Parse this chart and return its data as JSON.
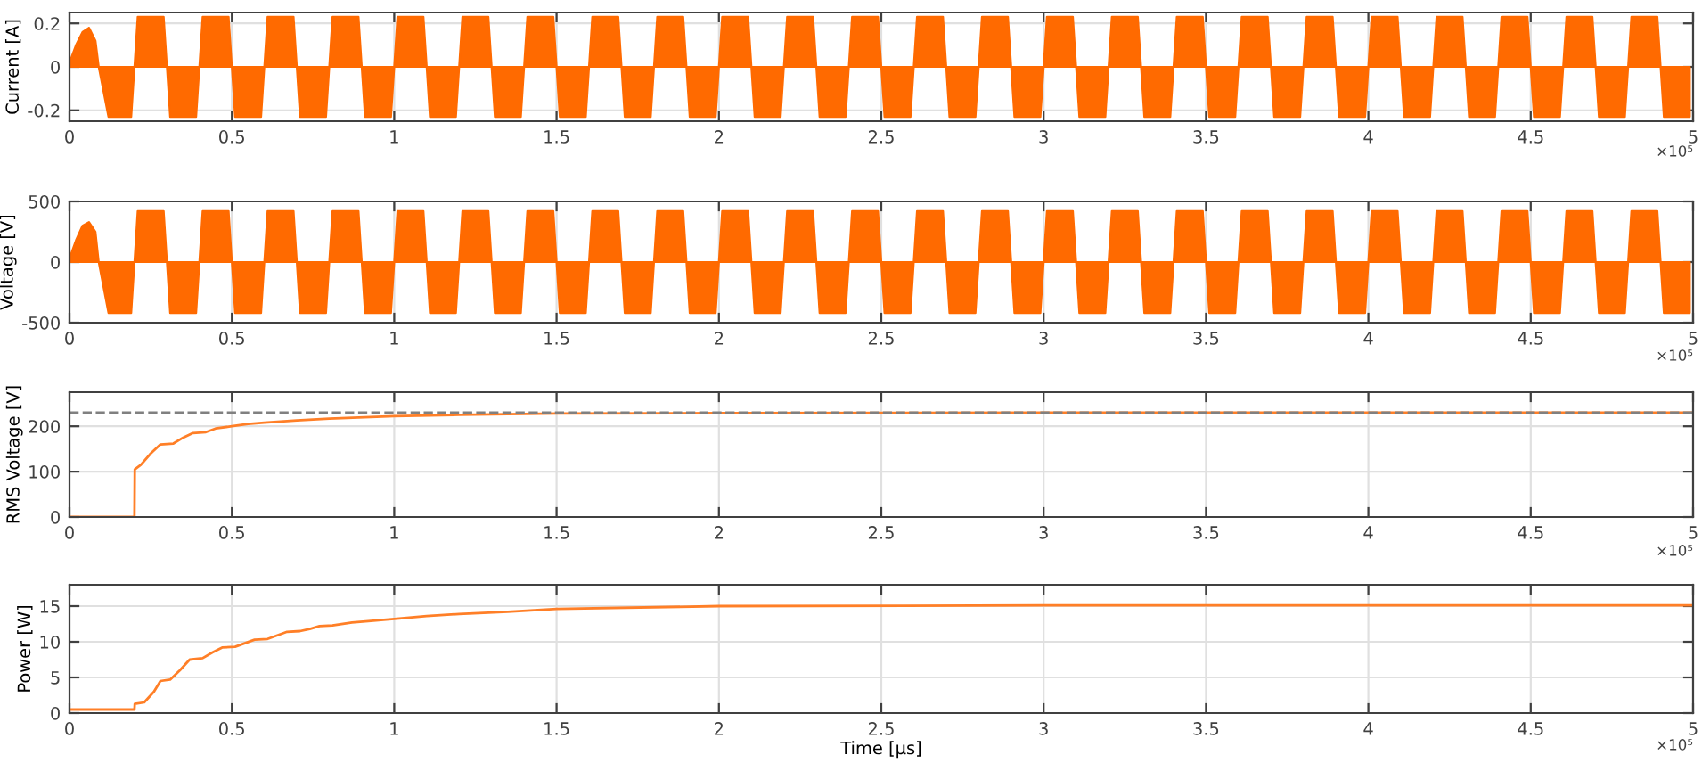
{
  "chart_data": [
    {
      "type": "area",
      "ylabel": "Current [A]",
      "xlim": [
        0,
        5
      ],
      "ylim": [
        -0.25,
        0.25
      ],
      "yticks": [
        -0.2,
        0,
        0.2
      ],
      "xticks": [
        0,
        0.5,
        1,
        1.5,
        2,
        2.5,
        3,
        3.5,
        4,
        4.5,
        5
      ],
      "grid": true,
      "annotations": [
        "×10⁵"
      ],
      "series": [
        {
          "color": "#ff6a00",
          "x": [
            0,
            0.02,
            0.04,
            0.06,
            0.08,
            0.09,
            0.12,
            0.19,
            0.21,
            0.29,
            0.31,
            0.39,
            0.41,
            0.49,
            0.51,
            0.59,
            0.61,
            0.69,
            0.71,
            0.79,
            0.81,
            0.89,
            0.91,
            0.99,
            1.01,
            1.09,
            1.11,
            1.19,
            1.21,
            1.29,
            1.31,
            1.39,
            1.41,
            1.49,
            1.51,
            1.59,
            1.61,
            1.69,
            1.71,
            1.79,
            1.81,
            1.89,
            1.91,
            1.99,
            2.01,
            2.09,
            2.11,
            2.19,
            2.21,
            2.29,
            2.31,
            2.39,
            2.41,
            2.49,
            2.51,
            2.59,
            2.61,
            2.69,
            2.71,
            2.79,
            2.81,
            2.89,
            2.91,
            2.99,
            3.01,
            3.09,
            3.11,
            3.19,
            3.21,
            3.29,
            3.31,
            3.39,
            3.41,
            3.49,
            3.51,
            3.59,
            3.61,
            3.69,
            3.71,
            3.79,
            3.81,
            3.89,
            3.91,
            3.99,
            4.01,
            4.09,
            4.11,
            4.19,
            4.21,
            4.29,
            4.31,
            4.39,
            4.41,
            4.49,
            4.51,
            4.59,
            4.61,
            4.69,
            4.71,
            4.79,
            4.81,
            4.89,
            4.91,
            4.99
          ],
          "values": [
            0.02,
            0.1,
            0.16,
            0.18,
            0.12,
            0,
            -0.23,
            -0.23,
            0.23,
            0.23,
            -0.23,
            -0.23,
            0.23,
            0.23,
            -0.23,
            -0.23,
            0.23,
            0.23,
            -0.23,
            -0.23,
            0.23,
            0.23,
            -0.23,
            -0.23,
            0.23,
            0.23,
            -0.23,
            -0.23,
            0.23,
            0.23,
            -0.23,
            -0.23,
            0.23,
            0.23,
            -0.23,
            -0.23,
            0.23,
            0.23,
            -0.23,
            -0.23,
            0.23,
            0.23,
            -0.23,
            -0.23,
            0.23,
            0.23,
            -0.23,
            -0.23,
            0.23,
            0.23,
            -0.23,
            -0.23,
            0.23,
            0.23,
            -0.23,
            -0.23,
            0.23,
            0.23,
            -0.23,
            -0.23,
            0.23,
            0.23,
            -0.23,
            -0.23,
            0.23,
            0.23,
            -0.23,
            -0.23,
            0.23,
            0.23,
            -0.23,
            -0.23,
            0.23,
            0.23,
            -0.23,
            -0.23,
            0.23,
            0.23,
            -0.23,
            -0.23,
            0.23,
            0.23,
            -0.23,
            -0.23,
            0.23,
            0.23,
            -0.23,
            -0.23,
            0.23,
            0.23,
            -0.23,
            -0.23,
            0.23,
            0.23,
            -0.23,
            -0.23,
            0.23,
            0.23,
            -0.23,
            -0.23,
            0.23,
            0.23,
            -0.23,
            -0.23
          ]
        }
      ]
    },
    {
      "type": "area",
      "ylabel": "Voltage [V]",
      "xlim": [
        0,
        5
      ],
      "ylim": [
        -500,
        500
      ],
      "yticks": [
        -500,
        0,
        500
      ],
      "xticks": [
        0,
        0.5,
        1,
        1.5,
        2,
        2.5,
        3,
        3.5,
        4,
        4.5,
        5
      ],
      "grid": true,
      "annotations": [
        "×10⁵"
      ],
      "series": [
        {
          "color": "#ff6a00",
          "x": [
            0,
            0.02,
            0.04,
            0.06,
            0.08,
            0.09,
            0.12,
            0.19,
            0.21,
            0.29,
            0.31,
            0.39,
            0.41,
            0.49,
            0.51,
            0.59,
            0.61,
            0.69,
            0.71,
            0.79,
            0.81,
            0.89,
            0.91,
            0.99,
            1.01,
            1.09,
            1.11,
            1.19,
            1.21,
            1.29,
            1.31,
            1.39,
            1.41,
            1.49,
            1.51,
            1.59,
            1.61,
            1.69,
            1.71,
            1.79,
            1.81,
            1.89,
            1.91,
            1.99,
            2.01,
            2.09,
            2.11,
            2.19,
            2.21,
            2.29,
            2.31,
            2.39,
            2.41,
            2.49,
            2.51,
            2.59,
            2.61,
            2.69,
            2.71,
            2.79,
            2.81,
            2.89,
            2.91,
            2.99,
            3.01,
            3.09,
            3.11,
            3.19,
            3.21,
            3.29,
            3.31,
            3.39,
            3.41,
            3.49,
            3.51,
            3.59,
            3.61,
            3.69,
            3.71,
            3.79,
            3.81,
            3.89,
            3.91,
            3.99,
            4.01,
            4.09,
            4.11,
            4.19,
            4.21,
            4.29,
            4.31,
            4.39,
            4.41,
            4.49,
            4.51,
            4.59,
            4.61,
            4.69,
            4.71,
            4.79,
            4.81,
            4.89,
            4.91,
            4.99
          ],
          "values": [
            30,
            180,
            300,
            330,
            250,
            0,
            -420,
            -420,
            420,
            420,
            -420,
            -420,
            420,
            420,
            -420,
            -420,
            420,
            420,
            -420,
            -420,
            420,
            420,
            -420,
            -420,
            420,
            420,
            -420,
            -420,
            420,
            420,
            -420,
            -420,
            420,
            420,
            -420,
            -420,
            420,
            420,
            -420,
            -420,
            420,
            420,
            -420,
            -420,
            420,
            420,
            -420,
            -420,
            420,
            420,
            -420,
            -420,
            420,
            420,
            -420,
            -420,
            420,
            420,
            -420,
            -420,
            420,
            420,
            -420,
            -420,
            420,
            420,
            -420,
            -420,
            420,
            420,
            -420,
            -420,
            420,
            420,
            -420,
            -420,
            420,
            420,
            -420,
            -420,
            420,
            420,
            -420,
            -420,
            420,
            420,
            -420,
            -420,
            420,
            420,
            -420,
            -420,
            420,
            420,
            -420,
            -420,
            420,
            420,
            -420,
            -420,
            420,
            420,
            -420,
            -420
          ]
        }
      ]
    },
    {
      "type": "line",
      "ylabel": "RMS Voltage [V]",
      "xlim": [
        0,
        5
      ],
      "ylim": [
        0,
        275
      ],
      "yticks": [
        0,
        100,
        200
      ],
      "xticks": [
        0,
        0.5,
        1,
        1.5,
        2,
        2.5,
        3,
        3.5,
        4,
        4.5,
        5
      ],
      "grid": true,
      "annotations": [
        "×10⁵"
      ],
      "ref_lines": [
        {
          "axis": "y",
          "value": 230,
          "color": "#808080",
          "line_style": "dashed"
        }
      ],
      "series": [
        {
          "color": "#ff7f27",
          "x": [
            0,
            0.2,
            0.201,
            0.22,
            0.25,
            0.28,
            0.32,
            0.35,
            0.38,
            0.42,
            0.45,
            0.5,
            0.55,
            0.6,
            0.7,
            0.8,
            1,
            1.2,
            1.5,
            2,
            3,
            5
          ],
          "values": [
            0,
            0,
            105,
            115,
            140,
            160,
            162,
            175,
            185,
            187,
            195,
            200,
            205,
            208,
            213,
            217,
            222,
            225,
            228,
            229,
            230,
            230
          ]
        }
      ]
    },
    {
      "type": "line",
      "ylabel": "Power [W]",
      "xlabel": "Time [μs]",
      "xlim": [
        0,
        5
      ],
      "ylim": [
        0,
        18
      ],
      "yticks": [
        0,
        5,
        10,
        15
      ],
      "xticks": [
        0,
        0.5,
        1,
        1.5,
        2,
        2.5,
        3,
        3.5,
        4,
        4.5,
        5
      ],
      "grid": true,
      "annotations": [
        "×10⁵"
      ],
      "series": [
        {
          "color": "#ff7f27",
          "x": [
            0,
            0.2,
            0.201,
            0.23,
            0.26,
            0.28,
            0.31,
            0.34,
            0.37,
            0.41,
            0.44,
            0.47,
            0.51,
            0.54,
            0.57,
            0.61,
            0.64,
            0.67,
            0.71,
            0.74,
            0.77,
            0.81,
            0.87,
            0.92,
            1,
            1.1,
            1.2,
            1.35,
            1.5,
            2,
            3,
            5
          ],
          "values": [
            0.5,
            0.5,
            1.3,
            1.5,
            3,
            4.5,
            4.7,
            6,
            7.5,
            7.7,
            8.5,
            9.2,
            9.3,
            9.8,
            10.3,
            10.4,
            10.9,
            11.4,
            11.5,
            11.8,
            12.2,
            12.3,
            12.7,
            12.9,
            13.2,
            13.6,
            13.9,
            14.2,
            14.6,
            15,
            15.1,
            15.1
          ]
        }
      ]
    }
  ]
}
